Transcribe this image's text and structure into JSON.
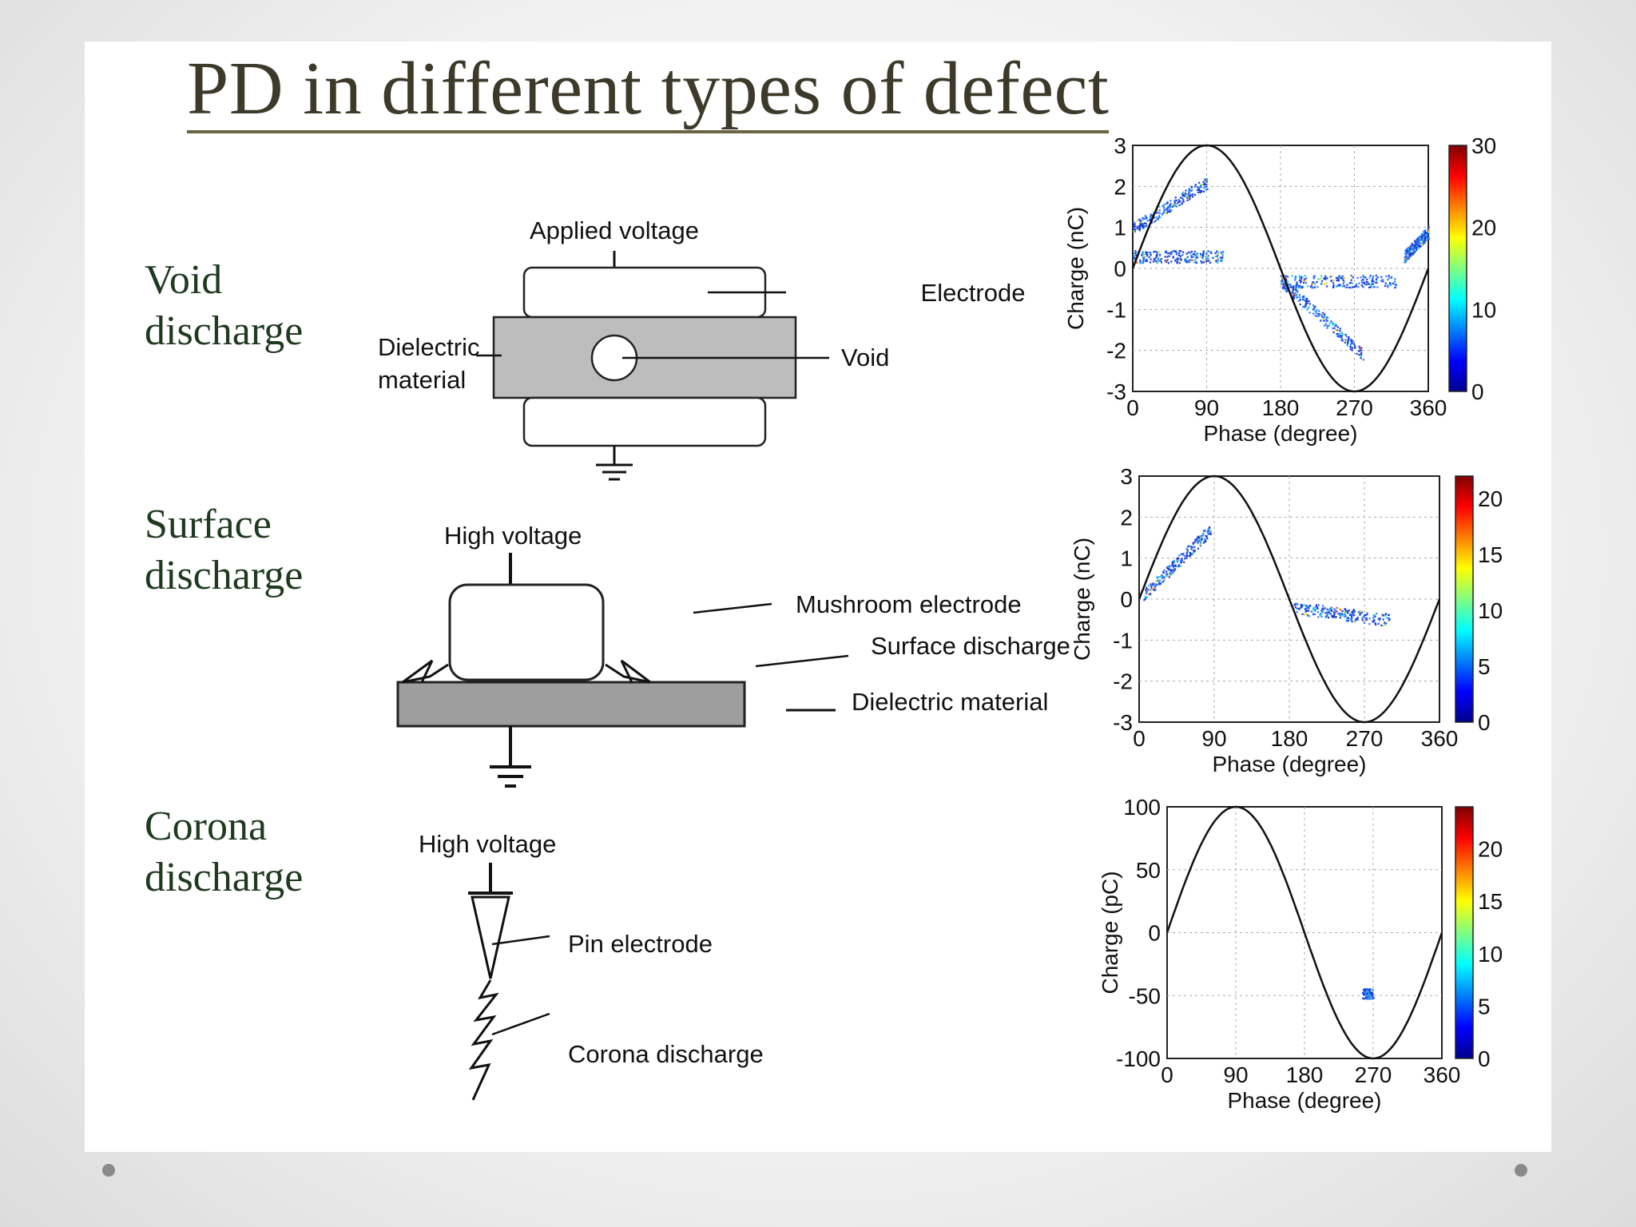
{
  "title": "PD in different types of defect",
  "rows": [
    {
      "label1": "Void",
      "label2": "discharge"
    },
    {
      "label1": "Surface",
      "label2": "discharge"
    },
    {
      "label1": "Corona",
      "label2": "discharge"
    }
  ],
  "diagrams": {
    "void": {
      "applied_voltage": "Applied voltage",
      "electrode": "Electrode",
      "dielectric1": "Dielectric",
      "dielectric2": "material",
      "void": "Void"
    },
    "surface": {
      "high_voltage": "High voltage",
      "mushroom_electrode": "Mushroom electrode",
      "surface_discharge": "Surface discharge",
      "dielectric_material": "Dielectric material"
    },
    "corona": {
      "high_voltage": "High voltage",
      "pin_electrode": "Pin electrode",
      "corona_discharge": "Corona discharge"
    }
  },
  "chart_data": [
    {
      "type": "scatter",
      "xlabel": "Phase (degree)",
      "ylabel": "Charge (nC)",
      "xlim": [
        0,
        360
      ],
      "ylim": [
        -3,
        3
      ],
      "xticks": [
        "0",
        "90",
        "180",
        "270",
        "360"
      ],
      "yticks": [
        "3",
        "2",
        "1",
        "0",
        "-1",
        "-2",
        "-3"
      ],
      "reference_amplitude": 3,
      "colorbar": {
        "range": [
          0,
          30
        ],
        "ticks": [
          "30",
          "20",
          "10",
          "0"
        ]
      },
      "clusters": [
        {
          "x": [
            0,
            90
          ],
          "y": [
            1.0,
            2.1
          ]
        },
        {
          "x": [
            0,
            110
          ],
          "y": [
            0.3,
            0.3
          ]
        },
        {
          "x": [
            180,
            320
          ],
          "y": [
            -0.3,
            -0.3
          ]
        },
        {
          "x": [
            180,
            280
          ],
          "y": [
            -0.3,
            -2.1
          ]
        },
        {
          "x": [
            330,
            360
          ],
          "y": [
            0.3,
            0.9
          ]
        }
      ]
    },
    {
      "type": "scatter",
      "xlabel": "Phase (degree)",
      "ylabel": "Charge (nC)",
      "xlim": [
        0,
        360
      ],
      "ylim": [
        -3,
        3
      ],
      "xticks": [
        "0",
        "90",
        "180",
        "270",
        "360"
      ],
      "yticks": [
        "3",
        "2",
        "1",
        "0",
        "-1",
        "-2",
        "-3"
      ],
      "reference_amplitude": 3,
      "colorbar": {
        "range": [
          0,
          22
        ],
        "ticks": [
          "20",
          "15",
          "10",
          "5",
          "0"
        ]
      },
      "clusters": [
        {
          "x": [
            5,
            85
          ],
          "y": [
            0.1,
            1.7
          ]
        },
        {
          "x": [
            185,
            300
          ],
          "y": [
            -0.2,
            -0.5
          ]
        }
      ]
    },
    {
      "type": "scatter",
      "xlabel": "Phase (degree)",
      "ylabel": "Charge (pC)",
      "xlim": [
        0,
        360
      ],
      "ylim": [
        -100,
        100
      ],
      "xticks": [
        "0",
        "90",
        "180",
        "270",
        "360"
      ],
      "yticks": [
        "100",
        "50",
        "0",
        "-50",
        "-100"
      ],
      "reference_amplitude": 100,
      "colorbar": {
        "range": [
          0,
          24
        ],
        "ticks": [
          "20",
          "15",
          "10",
          "5",
          "0"
        ]
      },
      "clusters": [
        {
          "x": [
            260,
            265
          ],
          "y": [
            -48,
            -48
          ]
        }
      ]
    }
  ],
  "nav": {
    "prev_icon": "dot-icon",
    "next_icon": "dot-icon"
  }
}
